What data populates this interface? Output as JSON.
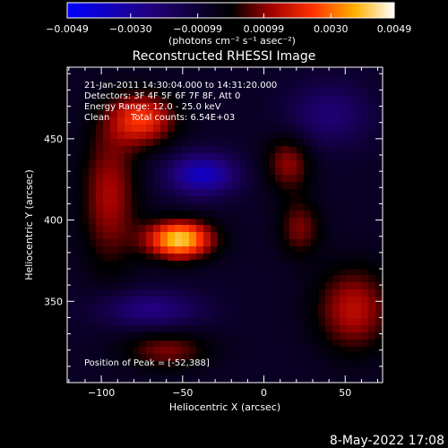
{
  "chart_data": {
    "type": "heatmap",
    "title": "Reconstructed RHESSI Image",
    "xlabel": "Heliocentric X (arcsec)",
    "ylabel": "Heliocentric Y (arcsec)",
    "xlim": [
      -121,
      73
    ],
    "ylim": [
      300,
      494
    ],
    "xticks": [
      -100,
      -50,
      0,
      50
    ],
    "xtick_labels": [
      "−100",
      "−50",
      "0",
      "50"
    ],
    "yticks": [
      350,
      400,
      450
    ],
    "ytick_labels": [
      "350",
      "400",
      "450"
    ],
    "colorbar": {
      "range": [
        -0.0049,
        0.0049
      ],
      "ticks": [
        -0.0049,
        -0.003,
        -0.00099,
        0.00099,
        0.003,
        0.0049
      ],
      "tick_labels": [
        "−0.0049",
        "−0.0030",
        "−0.00099",
        "0.00099",
        "0.0030",
        "0.0049"
      ],
      "units_label": "(photons cm⁻² s⁻¹ asec⁻²)"
    },
    "annotations": {
      "time_range": "21-Jan-2011 14:30:04.000 to 14:31:20.000",
      "detectors": "Detectors: 3F 4F 5F 6F 7F 8F, Att 0",
      "energy_range": "Energy Range: 12.0 - 25.0 keV",
      "algorithm": "Clean",
      "total_counts": "Total counts: 6.54E+03",
      "peak_position": "Position of Peak = [-52,388]"
    },
    "peak": [
      -52,
      388
    ],
    "features": [
      {
        "kind": "peak",
        "x": -52,
        "y": 388,
        "value": 0.0049,
        "sx": 14,
        "sy": 8
      },
      {
        "kind": "source",
        "x": -75,
        "y": 462,
        "value": 0.003,
        "sx": 14,
        "sy": 11
      },
      {
        "kind": "source",
        "x": 15,
        "y": 435,
        "value": 0.0018,
        "sx": 10,
        "sy": 12
      },
      {
        "kind": "source",
        "x": 22,
        "y": 395,
        "value": 0.0016,
        "sx": 9,
        "sy": 12
      },
      {
        "kind": "source",
        "x": 55,
        "y": 345,
        "value": 0.0022,
        "sx": 16,
        "sy": 18
      },
      {
        "kind": "source",
        "x": -95,
        "y": 415,
        "value": 0.002,
        "sx": 12,
        "sy": 30
      },
      {
        "kind": "source",
        "x": -60,
        "y": 320,
        "value": 0.0016,
        "sx": 18,
        "sy": 8
      },
      {
        "kind": "trough",
        "x": -38,
        "y": 428,
        "value": -0.003,
        "sx": 15,
        "sy": 9
      },
      {
        "kind": "trough",
        "x": -70,
        "y": 345,
        "value": -0.0018,
        "sx": 22,
        "sy": 8
      },
      {
        "kind": "trough",
        "x": 40,
        "y": 465,
        "value": -0.0015,
        "sx": 18,
        "sy": 14
      }
    ],
    "background": -0.0007,
    "footer_date": "8-May-2022 17:08"
  }
}
